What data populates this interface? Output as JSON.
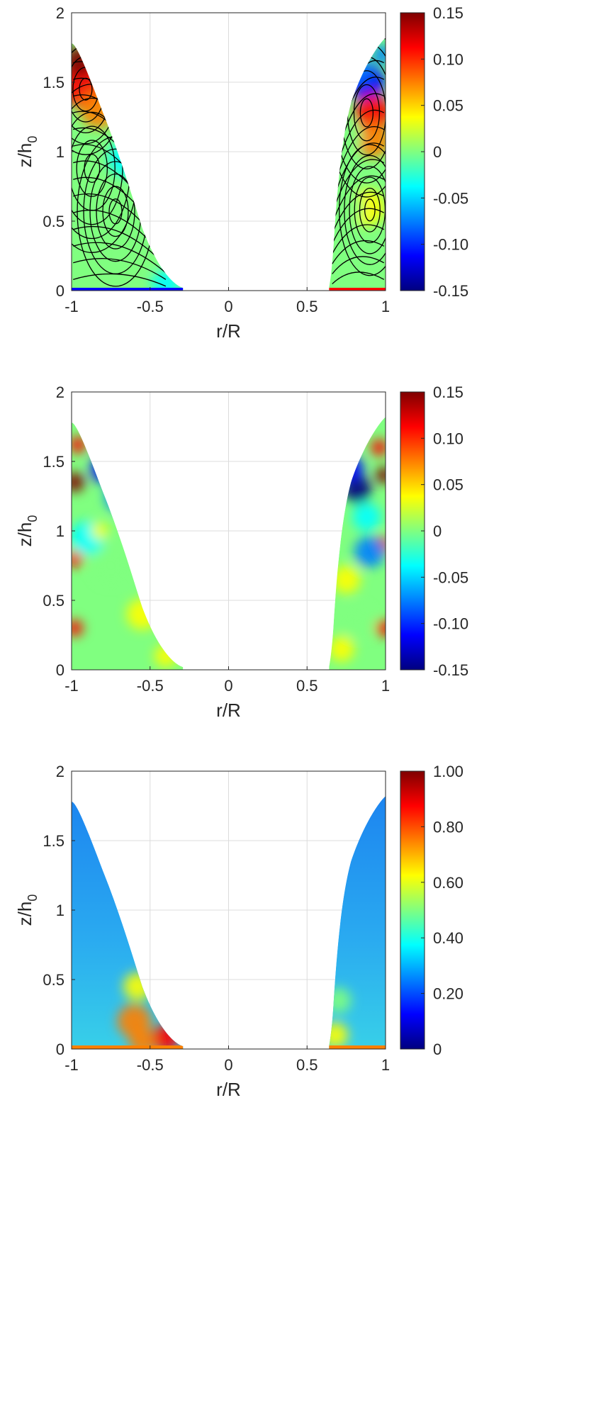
{
  "colormap": [
    "#00007f",
    "#0000ff",
    "#0080ff",
    "#00ffff",
    "#80ff80",
    "#ffff00",
    "#ff8000",
    "#ff0000",
    "#7f0000"
  ],
  "chart_data": [
    {
      "type": "heatmap",
      "description_panel": "top",
      "xlabel": "r/R",
      "ylabel_main": "z/h",
      "ylabel_sub": "0",
      "xlim": [
        -1,
        1
      ],
      "ylim": [
        0,
        2
      ],
      "xticks": [
        "-1",
        "-0.5",
        "0",
        "0.5",
        "1"
      ],
      "yticks": [
        "0",
        "0.5",
        "1",
        "1.5",
        "2"
      ],
      "grid": true,
      "streamlines": true,
      "colorbar": {
        "range": [
          -0.15,
          0.15
        ],
        "ticks": [
          "-0.15",
          "-0.10",
          "-0.05",
          "0",
          "0.05",
          "0.10",
          "0.15"
        ]
      },
      "left_region": {
        "r_wall": -1,
        "r_foot": -0.29,
        "z_top": 1.78
      },
      "right_region": {
        "r_foot": 0.64,
        "r_wall": 1,
        "z_top": 1.82
      }
    },
    {
      "type": "heatmap",
      "description_panel": "middle",
      "xlabel": "r/R",
      "ylabel_main": "z/h",
      "ylabel_sub": "0",
      "xlim": [
        -1,
        1
      ],
      "ylim": [
        0,
        2
      ],
      "xticks": [
        "-1",
        "-0.5",
        "0",
        "0.5",
        "1"
      ],
      "yticks": [
        "0",
        "0.5",
        "1",
        "1.5",
        "2"
      ],
      "grid": true,
      "streamlines": false,
      "colorbar": {
        "range": [
          -0.15,
          0.15
        ],
        "ticks": [
          "-0.15",
          "-0.10",
          "-0.05",
          "0",
          "0.05",
          "0.10",
          "0.15"
        ]
      },
      "left_region": {
        "r_wall": -1,
        "r_foot": -0.29,
        "z_top": 1.78
      },
      "right_region": {
        "r_foot": 0.64,
        "r_wall": 1,
        "z_top": 1.82
      }
    },
    {
      "type": "heatmap",
      "description_panel": "bottom",
      "xlabel": "r/R",
      "ylabel_main": "z/h",
      "ylabel_sub": "0",
      "xlim": [
        -1,
        1
      ],
      "ylim": [
        0,
        2
      ],
      "xticks": [
        "-1",
        "-0.5",
        "0",
        "0.5",
        "1"
      ],
      "yticks": [
        "0",
        "0.5",
        "1",
        "1.5",
        "2"
      ],
      "grid": true,
      "streamlines": false,
      "colorbar": {
        "range": [
          0,
          1
        ],
        "ticks": [
          "0",
          "0.20",
          "0.40",
          "0.60",
          "0.80",
          "1.00"
        ]
      },
      "left_region": {
        "r_wall": -1,
        "r_foot": -0.29,
        "z_top": 1.78
      },
      "right_region": {
        "r_foot": 0.64,
        "r_wall": 1,
        "z_top": 1.82
      }
    }
  ]
}
